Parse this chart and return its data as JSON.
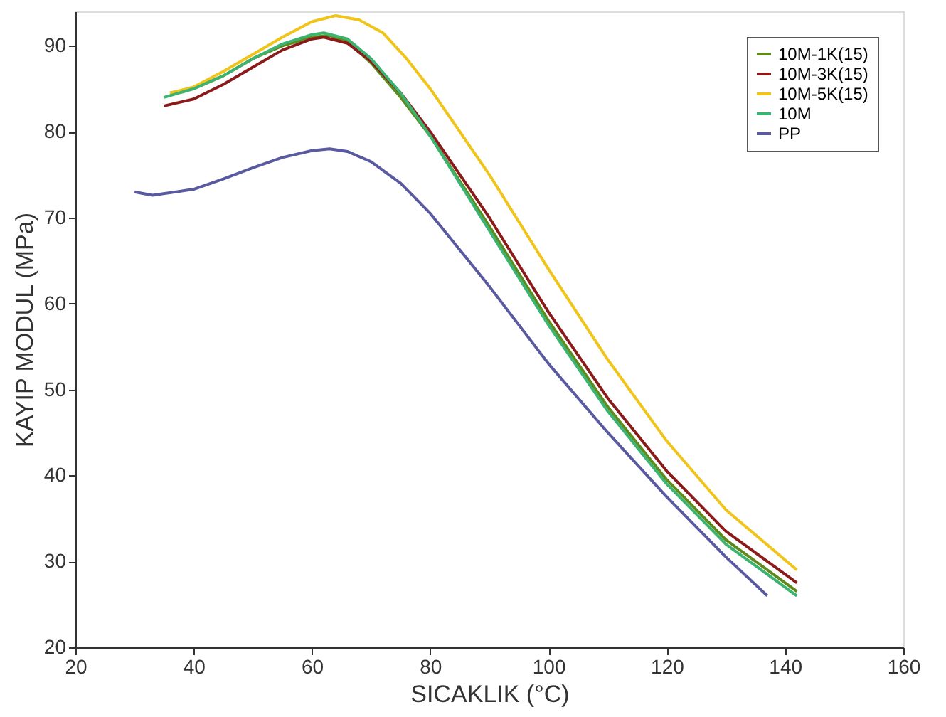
{
  "chart_data": {
    "type": "line",
    "xlabel": "SICAKLIK (°C)",
    "ylabel": "KAYIP MODUL (MPa)",
    "xlim": [
      20,
      160
    ],
    "xticks": [
      20,
      40,
      60,
      80,
      100,
      120,
      140,
      160
    ],
    "ylim": [
      20,
      94
    ],
    "yticks": [
      20,
      30,
      40,
      50,
      60,
      70,
      80,
      90
    ],
    "grid": false,
    "legend": "top right",
    "line_style": "solid",
    "series": [
      {
        "name": "10M-1K(15)",
        "color": "#5f8a1c",
        "x": [
          36,
          40,
          45,
          50,
          55,
          60,
          63,
          66,
          70,
          75,
          80,
          90,
          100,
          110,
          120,
          130,
          142
        ],
        "values": [
          84.5,
          85,
          86.5,
          88.5,
          90,
          91,
          91.2,
          90.5,
          88,
          84,
          79.5,
          69,
          58,
          48,
          39.5,
          32.5,
          26.5
        ]
      },
      {
        "name": "10M-3K(15)",
        "color": "#8b1a1a",
        "x": [
          35,
          40,
          45,
          50,
          55,
          60,
          62,
          66,
          70,
          75,
          80,
          90,
          100,
          110,
          120,
          130,
          142
        ],
        "values": [
          83,
          83.8,
          85.5,
          87.5,
          89.5,
          90.8,
          91,
          90.3,
          88.2,
          84.5,
          80,
          70,
          59,
          49,
          40.5,
          33.5,
          27.5
        ]
      },
      {
        "name": "10M-5K(15)",
        "color": "#f0c419",
        "x": [
          36,
          40,
          45,
          50,
          55,
          60,
          64,
          68,
          72,
          76,
          80,
          90,
          100,
          110,
          120,
          130,
          142
        ],
        "values": [
          84.5,
          85.2,
          87,
          89,
          91,
          92.8,
          93.5,
          93,
          91.5,
          88.5,
          85,
          75,
          64,
          53.5,
          44,
          36,
          29
        ]
      },
      {
        "name": "10M",
        "color": "#3cb371",
        "x": [
          35,
          40,
          45,
          50,
          55,
          60,
          62,
          66,
          70,
          75,
          80,
          90,
          100,
          110,
          120,
          130,
          142
        ],
        "values": [
          84,
          85,
          86.5,
          88.5,
          90.2,
          91.3,
          91.5,
          90.8,
          88.5,
          84.5,
          79.5,
          68.5,
          57.5,
          47.5,
          39,
          32,
          26
        ]
      },
      {
        "name": "PP",
        "color": "#5a5aa0",
        "x": [
          30,
          33,
          40,
          45,
          50,
          55,
          60,
          63,
          66,
          70,
          75,
          80,
          90,
          100,
          110,
          120,
          130,
          137
        ],
        "values": [
          73,
          72.6,
          73.3,
          74.5,
          75.8,
          77,
          77.8,
          78,
          77.7,
          76.5,
          74,
          70.5,
          62,
          53,
          45,
          37.5,
          30.5,
          26
        ]
      }
    ]
  }
}
